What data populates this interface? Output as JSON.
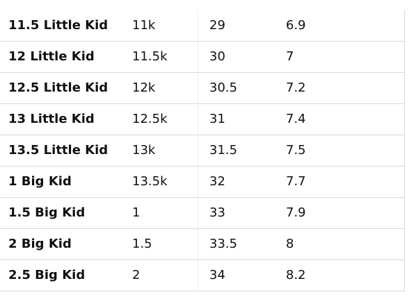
{
  "size_table": {
    "rows": [
      [
        "11.5 Little Kid",
        "11k",
        "29",
        "6.9"
      ],
      [
        "12 Little Kid",
        "11.5k",
        "30",
        "7"
      ],
      [
        "12.5 Little Kid",
        "12k",
        "30.5",
        "7.2"
      ],
      [
        "13 Little Kid",
        "12.5k",
        "31",
        "7.4"
      ],
      [
        "13.5 Little Kid",
        "13k",
        "31.5",
        "7.5"
      ],
      [
        "1 Big Kid",
        "13.5k",
        "32",
        "7.7"
      ],
      [
        "1.5 Big Kid",
        "1",
        "33",
        "7.9"
      ],
      [
        "2 Big Kid",
        "1.5",
        "33.5",
        "8"
      ],
      [
        "2.5 Big Kid",
        "2",
        "34",
        "8.2"
      ]
    ]
  },
  "colors": {
    "text": "#0f1111",
    "border": "#d5d9d9",
    "background": "#ffffff"
  }
}
